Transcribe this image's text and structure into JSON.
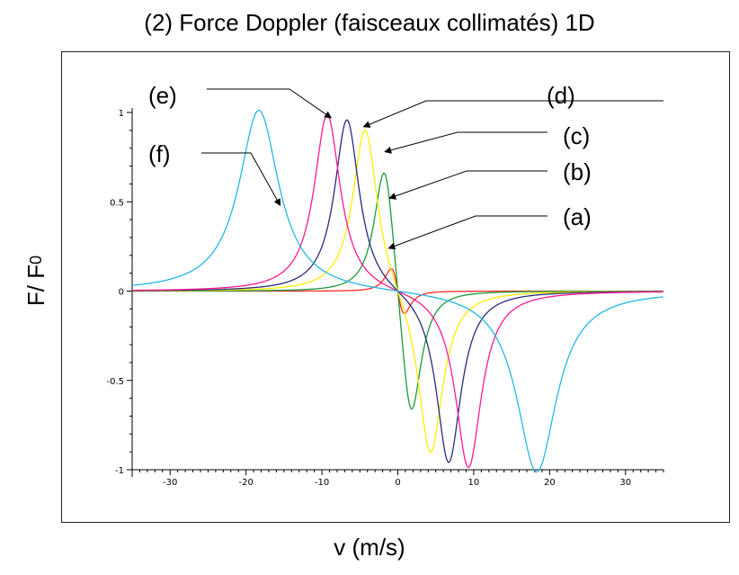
{
  "chart_data": {
    "type": "line",
    "title": "(2) Force Doppler (faisceaux collimatés) 1D",
    "xlabel": "v (m/s)",
    "ylabel": {
      "main": "F/ F",
      "sub": "0"
    },
    "xlim": [
      -35,
      35
    ],
    "ylim": [
      -1,
      1
    ],
    "xticks": [
      -30,
      -20,
      -10,
      0,
      10,
      20,
      30
    ],
    "yticks": [
      -1,
      -0.5,
      0,
      0.5,
      1
    ],
    "ytick_labels": [
      "-1",
      "-0.5",
      "0",
      "0.5",
      "1"
    ],
    "grid": false,
    "legend": "annotations",
    "series": [
      {
        "label": "(a)",
        "color": "#ff2a2a",
        "peak_v": -0.55,
        "peak_f": 0.25,
        "width": 1.25
      },
      {
        "label": "(b)",
        "color": "#1a9a3a",
        "peak_v": -1.7,
        "peak_f": 0.82,
        "width": 1.7
      },
      {
        "label": "(c)",
        "color": "#ffee00",
        "peak_v": -4.3,
        "peak_f": 0.95,
        "width": 2.0
      },
      {
        "label": "(d)",
        "color": "#2a2a80",
        "peak_v": -6.7,
        "peak_f": 0.98,
        "width": 2.0
      },
      {
        "label": "(e)",
        "color": "#ff1a90",
        "peak_v": -9.3,
        "peak_f": 1.0,
        "width": 2.1
      },
      {
        "label": "(f)",
        "color": "#22b8e6",
        "peak_v": -18.3,
        "peak_f": 1.02,
        "width": 3.2
      }
    ],
    "annotations": [
      {
        "text": "(a)",
        "point": [
          -1.2,
          0.24
        ]
      },
      {
        "text": "(b)",
        "point": [
          -1.1,
          0.52
        ]
      },
      {
        "text": "(c)",
        "point": [
          -1.7,
          0.78
        ]
      },
      {
        "text": "(d)",
        "point": [
          -4.5,
          0.92
        ]
      },
      {
        "text": "(e)",
        "point": [
          -8.8,
          0.97
        ]
      },
      {
        "text": "(f)",
        "point": [
          -15.5,
          0.48
        ]
      }
    ]
  }
}
